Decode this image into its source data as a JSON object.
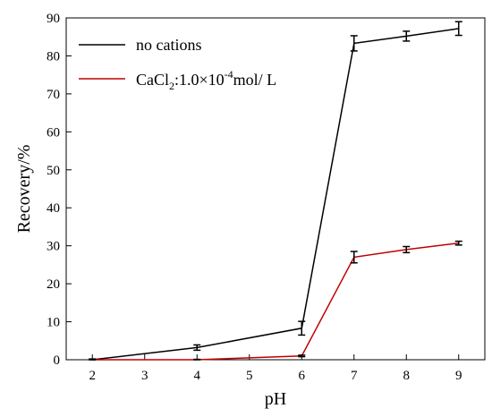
{
  "chart_data": {
    "type": "line",
    "x": [
      2,
      4,
      6,
      7,
      8,
      9
    ],
    "xlabel": "pH",
    "ylabel": "Recovery/%",
    "xlim": [
      1.5,
      9.5
    ],
    "ylim": [
      0,
      90
    ],
    "xticks": [
      "2",
      "3",
      "4",
      "5",
      "6",
      "7",
      "8",
      "9"
    ],
    "yticks": [
      "0",
      "10",
      "20",
      "30",
      "40",
      "50",
      "60",
      "70",
      "80",
      "90"
    ],
    "grid": false,
    "legend_position": "top-left",
    "series": [
      {
        "name": "no cations",
        "color": "#000000",
        "values": [
          0.0,
          3.2,
          8.3,
          83.3,
          85.2,
          87.2
        ],
        "errors": [
          0.2,
          0.7,
          1.8,
          2.0,
          1.3,
          1.8
        ]
      },
      {
        "name": "CaCl2:1.0×10-4mol/ L",
        "color": "#c00000",
        "values": [
          0.0,
          0.0,
          1.0,
          27.0,
          29.0,
          30.7
        ],
        "errors": [
          0.1,
          0.1,
          0.2,
          1.5,
          0.8,
          0.5
        ]
      }
    ],
    "legend": {
      "entry1": "no cations",
      "entry2": {
        "prefix": "CaCl",
        "sub": "2",
        "mid": ":1.0×10",
        "sup": "-4",
        "suffix": "mol/ L"
      }
    }
  }
}
